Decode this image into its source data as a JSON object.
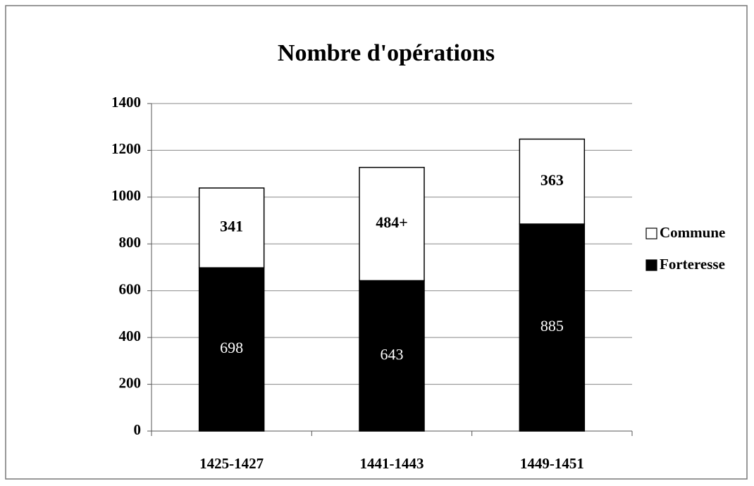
{
  "chart_data": {
    "type": "stacked_bar",
    "title": "Nombre d'opérations",
    "categories": [
      "1425-1427",
      "1441-1443",
      "1449-1451"
    ],
    "series": [
      {
        "name": "Forteresse",
        "color": "#000000",
        "values": [
          698,
          643,
          885
        ]
      },
      {
        "name": "Commune",
        "color": "#ffffff",
        "values": [
          341,
          484,
          363
        ],
        "value_labels": [
          "341",
          "484+",
          "363"
        ]
      }
    ],
    "ylim": [
      0,
      1400
    ],
    "yticks": [
      0,
      200,
      400,
      600,
      800,
      1000,
      1200,
      1400
    ],
    "grid": true,
    "legend": "right"
  }
}
